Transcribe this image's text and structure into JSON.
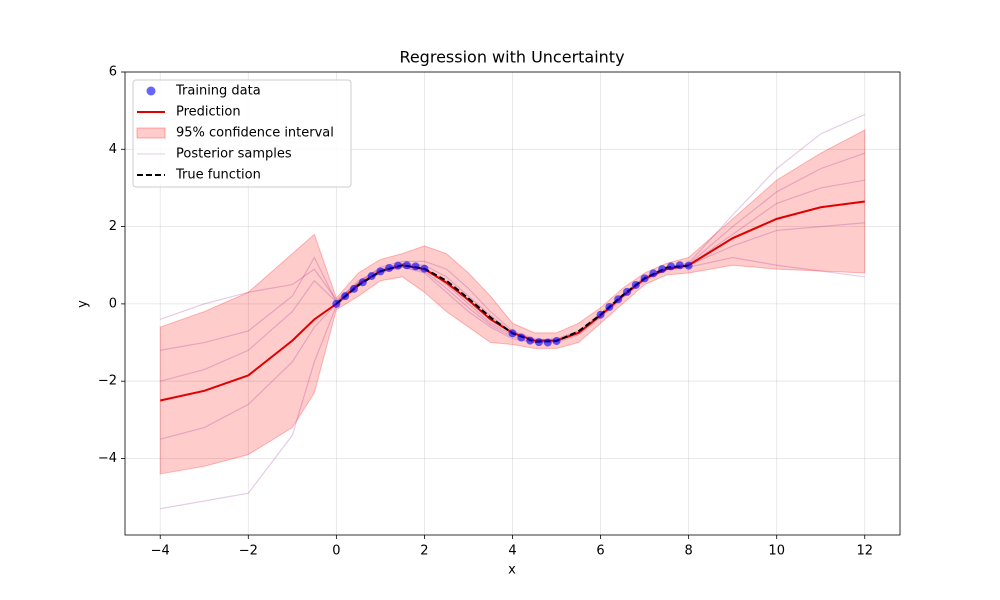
{
  "chart_data": {
    "type": "line",
    "title": "Regression with Uncertainty",
    "x_label": "x",
    "y_label": "y",
    "xlim": [
      -4.8,
      12.8
    ],
    "ylim": [
      -5.98,
      6
    ],
    "xticks": [
      {
        "value": -4,
        "label": "−4"
      },
      {
        "value": -2,
        "label": "−2"
      },
      0,
      2,
      4,
      6,
      8,
      10,
      12
    ],
    "yticks": [
      {
        "value": -4,
        "label": "−4"
      },
      {
        "value": -2,
        "label": "−2"
      },
      0,
      2,
      4,
      6
    ],
    "grid": true,
    "legend": "upper left",
    "series": [
      {
        "name": "Training data",
        "style": "scatter",
        "color": "#0000ff",
        "x": [
          0,
          0.2,
          0.4,
          0.6,
          0.8,
          1.0,
          1.2,
          1.4,
          1.6,
          1.8,
          2.0,
          4.0,
          4.2,
          4.4,
          4.6,
          4.8,
          5.0,
          6.0,
          6.2,
          6.4,
          6.6,
          6.8,
          7.0,
          7.2,
          7.4,
          7.6,
          7.8,
          8.0
        ],
        "values": [
          0,
          0.2,
          0.39,
          0.56,
          0.72,
          0.84,
          0.93,
          0.99,
          1.0,
          0.97,
          0.91,
          -0.76,
          -0.87,
          -0.95,
          -0.99,
          -1.0,
          -0.96,
          -0.28,
          -0.08,
          0.12,
          0.31,
          0.49,
          0.66,
          0.79,
          0.9,
          0.97,
          1.0,
          0.99
        ]
      },
      {
        "name": "Prediction",
        "style": "line",
        "color": "#e00000",
        "x": [
          -4,
          -3,
          -2,
          -1,
          -0.5,
          0,
          0.5,
          1,
          1.5,
          2,
          2.5,
          3,
          3.5,
          4,
          4.5,
          5,
          5.5,
          6,
          6.5,
          7,
          7.5,
          8,
          9,
          10,
          11,
          12
        ],
        "values": [
          -2.5,
          -2.25,
          -1.85,
          -0.95,
          -0.4,
          0,
          0.5,
          0.85,
          1.0,
          0.9,
          0.55,
          0.1,
          -0.4,
          -0.75,
          -0.95,
          -0.95,
          -0.75,
          -0.3,
          0.2,
          0.65,
          0.9,
          1.0,
          1.7,
          2.2,
          2.5,
          2.65
        ]
      },
      {
        "name": "95% confidence interval",
        "style": "band",
        "color": "#ff0000",
        "x": [
          -4,
          -3,
          -2,
          -1,
          -0.5,
          0,
          0.5,
          1,
          1.5,
          2,
          2.5,
          3,
          3.5,
          4,
          4.5,
          5,
          5.5,
          6,
          6.5,
          7,
          7.5,
          8,
          9,
          10,
          11,
          12
        ],
        "lower": [
          -4.4,
          -4.2,
          -3.9,
          -3.2,
          -2.3,
          -0.15,
          0.2,
          0.6,
          0.7,
          0.3,
          -0.2,
          -0.6,
          -1.0,
          -1.05,
          -1.15,
          -1.15,
          -1.0,
          -0.5,
          0.0,
          0.5,
          0.75,
          0.8,
          1.0,
          0.9,
          0.85,
          0.8
        ],
        "upper": [
          -0.6,
          -0.2,
          0.3,
          1.3,
          1.8,
          0.15,
          0.8,
          1.15,
          1.3,
          1.5,
          1.3,
          0.8,
          0.2,
          -0.5,
          -0.75,
          -0.75,
          -0.5,
          -0.1,
          0.4,
          0.8,
          1.05,
          1.2,
          2.2,
          3.2,
          3.9,
          4.5
        ]
      },
      {
        "name": "Posterior samples",
        "style": "samples",
        "color": "#800080",
        "x": [
          -4,
          -3,
          -2,
          -1,
          -0.5,
          0,
          0.5,
          1,
          1.5,
          2,
          2.5,
          3,
          3.5,
          4,
          4.5,
          5,
          5.5,
          6,
          6.5,
          7,
          7.5,
          8,
          9,
          10,
          11,
          12
        ],
        "samples": [
          [
            -0.4,
            0.0,
            0.3,
            0.5,
            0.9,
            0.1,
            0.55,
            0.9,
            1.05,
            0.95,
            0.5,
            0.0,
            -0.5,
            -0.8,
            -0.95,
            -0.9,
            -0.7,
            -0.25,
            0.25,
            0.7,
            0.95,
            1.05,
            2.3,
            3.5,
            4.4,
            4.9
          ],
          [
            -5.3,
            -5.1,
            -4.9,
            -3.4,
            -1.5,
            -0.05,
            0.45,
            0.85,
            0.95,
            0.8,
            0.3,
            -0.2,
            -0.6,
            -0.9,
            -1.0,
            -1.0,
            -0.8,
            -0.35,
            0.15,
            0.6,
            0.88,
            0.95,
            1.2,
            1.0,
            0.85,
            0.7
          ],
          [
            -2.0,
            -1.7,
            -1.2,
            -0.2,
            0.6,
            0.05,
            0.55,
            0.95,
            1.1,
            1.1,
            0.9,
            0.4,
            -0.2,
            -0.7,
            -0.9,
            -0.95,
            -0.75,
            -0.3,
            0.2,
            0.65,
            0.9,
            1.0,
            1.8,
            2.6,
            3.0,
            3.2
          ],
          [
            -3.5,
            -3.2,
            -2.6,
            -1.5,
            -0.6,
            0.0,
            0.5,
            0.8,
            0.95,
            0.85,
            0.4,
            -0.1,
            -0.55,
            -0.85,
            -1.0,
            -0.95,
            -0.75,
            -0.3,
            0.2,
            0.65,
            0.9,
            1.0,
            1.5,
            1.9,
            2.0,
            2.1
          ],
          [
            -1.2,
            -1.0,
            -0.7,
            0.2,
            1.2,
            0.05,
            0.6,
            0.9,
            1.05,
            1.0,
            0.7,
            0.2,
            -0.3,
            -0.75,
            -0.95,
            -0.95,
            -0.75,
            -0.3,
            0.2,
            0.65,
            0.92,
            1.02,
            2.0,
            2.9,
            3.5,
            3.9
          ]
        ]
      },
      {
        "name": "True function",
        "style": "dashed",
        "color": "#000000",
        "x": [
          0,
          0.5,
          1,
          1.5,
          2,
          2.5,
          3,
          3.5,
          4,
          4.5,
          5,
          5.5,
          6,
          6.5,
          7,
          7.5,
          8
        ],
        "values": [
          0,
          0.48,
          0.84,
          1.0,
          0.91,
          0.6,
          0.14,
          -0.35,
          -0.76,
          -0.98,
          -0.96,
          -0.71,
          -0.28,
          0.22,
          0.66,
          0.94,
          0.99
        ]
      }
    ]
  }
}
